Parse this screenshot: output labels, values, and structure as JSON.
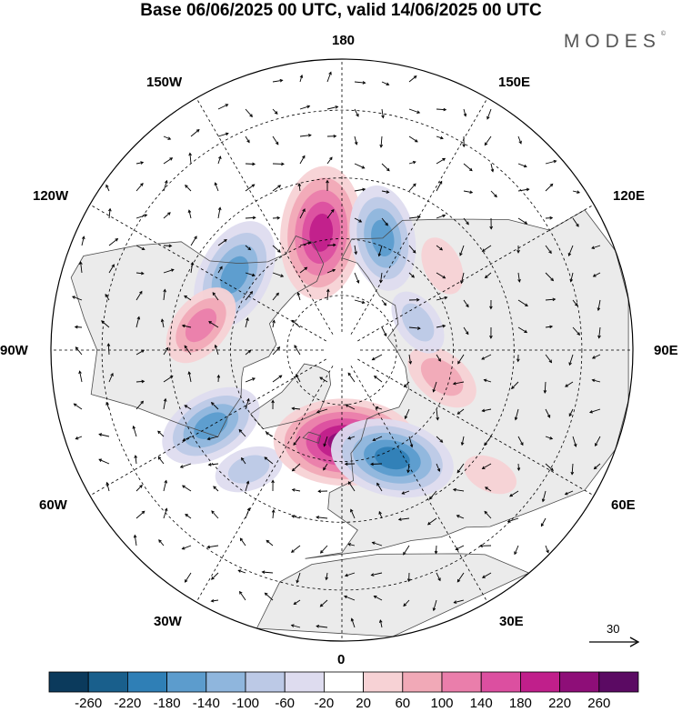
{
  "title": "Base 06/06/2025 00 UTC, valid 14/06/2025 00 UTC",
  "brand": "MODES",
  "brand_mark": "©",
  "longitude_labels": {
    "lon_180": "180",
    "lon_150e": "150E",
    "lon_120e": "120E",
    "lon_90e": "90E",
    "lon_60e": "60E",
    "lon_30e": "30E",
    "lon_0": "0",
    "lon_30w": "30W",
    "lon_60w": "60W",
    "lon_90w": "90W",
    "lon_120w": "120W",
    "lon_150w": "150W"
  },
  "reference_vector_label": "30",
  "colorbar": {
    "labels": [
      "-260",
      "-220",
      "-180",
      "-140",
      "-100",
      "-60",
      "-20",
      "20",
      "60",
      "100",
      "140",
      "180",
      "220",
      "260"
    ],
    "colors": [
      "#0b3a5c",
      "#195f8c",
      "#2f7fb6",
      "#5c9ccd",
      "#8fb6dd",
      "#bcc9e6",
      "#dedcef",
      "#ffffff",
      "#f7d2d5",
      "#f1a9b7",
      "#ea7eab",
      "#dc4fa0",
      "#c01f8b",
      "#8e0e78",
      "#5b0a63"
    ]
  },
  "map": {
    "projection": "north polar stereographic",
    "land_color": "#ebebeb",
    "coast_color": "#4a4a4a",
    "anomaly_centers": [
      {
        "lon": -170,
        "lat": 58,
        "value": 200
      },
      {
        "lon": 160,
        "lat": 58,
        "value": -140
      },
      {
        "lon": -125,
        "lat": 55,
        "value": -160
      },
      {
        "lon": -100,
        "lat": 52,
        "value": 100
      },
      {
        "lon": -60,
        "lat": 50,
        "value": -140
      },
      {
        "lon": -38,
        "lat": 50,
        "value": -60
      },
      {
        "lon": 2,
        "lat": 65,
        "value": 220
      },
      {
        "lon": 25,
        "lat": 58,
        "value": -180
      },
      {
        "lon": 75,
        "lat": 62,
        "value": 80
      },
      {
        "lon": 110,
        "lat": 68,
        "value": -60
      },
      {
        "lon": 130,
        "lat": 55,
        "value": 40
      },
      {
        "lon": 50,
        "lat": 40,
        "value": 30
      }
    ]
  }
}
